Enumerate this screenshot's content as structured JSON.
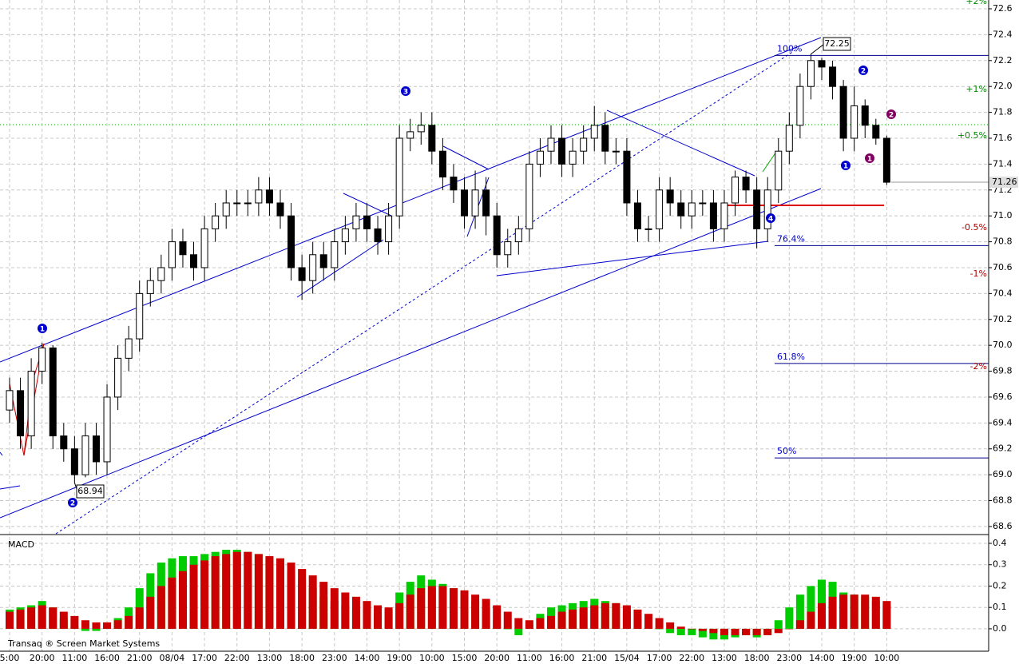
{
  "chart_data": {
    "type": "candlestick",
    "categories": [
      "5:00",
      null,
      null,
      "20:00",
      null,
      null,
      "11:00",
      null,
      null,
      "16:00",
      null,
      null,
      "21:00",
      null,
      null,
      "08/04",
      null,
      null,
      "17:00",
      null,
      null,
      "22:00",
      null,
      null,
      "13:00",
      null,
      null,
      "18:00",
      null,
      null,
      "23:00",
      null,
      null,
      "14:00",
      null,
      null,
      "19:00",
      null,
      null,
      "10:00",
      null,
      null,
      "15:00",
      null,
      null,
      "20:00",
      null,
      null,
      "11:00",
      null,
      null,
      "16:00",
      null,
      null,
      "21:00",
      null,
      null,
      "15/04",
      null,
      null,
      "17:00",
      null,
      null,
      "22:00",
      null,
      null,
      "13:00",
      null,
      null,
      "18:00",
      null,
      null,
      "23:00",
      null,
      null,
      "14:00",
      null,
      null,
      "19:00",
      null,
      null,
      "10:00"
    ],
    "open": [
      69.5,
      69.65,
      69.3,
      69.8,
      69.98,
      69.3,
      69.2,
      69.0,
      69.3,
      69.1,
      69.6,
      69.9,
      70.05,
      70.4,
      70.5,
      70.6,
      70.8,
      70.7,
      70.6,
      70.9,
      71.0,
      71.1,
      71.1,
      71.1,
      71.2,
      71.1,
      71.0,
      70.6,
      70.5,
      70.7,
      70.6,
      70.8,
      70.9,
      71.0,
      70.9,
      70.8,
      71.0,
      71.6,
      71.65,
      71.7,
      71.5,
      71.3,
      71.2,
      71.0,
      71.2,
      71.0,
      70.7,
      70.8,
      70.9,
      71.4,
      71.5,
      71.6,
      71.4,
      71.5,
      71.6,
      71.7,
      71.5,
      71.5,
      71.1,
      70.9,
      70.9,
      71.2,
      71.1,
      71.0,
      71.1,
      71.1,
      70.9,
      71.1,
      71.3,
      71.2,
      70.9,
      71.2,
      71.5,
      71.7,
      72.0,
      72.2,
      72.15,
      72.0,
      71.6,
      71.85,
      71.7,
      71.6
    ],
    "high": [
      69.75,
      69.75,
      69.9,
      70.02,
      70.0,
      69.4,
      69.3,
      69.4,
      69.4,
      69.7,
      70.0,
      70.15,
      70.5,
      70.6,
      70.7,
      70.9,
      70.9,
      70.8,
      71.0,
      71.1,
      71.2,
      71.2,
      71.2,
      71.3,
      71.3,
      71.2,
      71.1,
      70.7,
      70.8,
      70.8,
      70.9,
      71.0,
      71.1,
      71.1,
      71.0,
      71.1,
      71.7,
      71.75,
      71.8,
      71.8,
      71.6,
      71.4,
      71.3,
      71.35,
      71.3,
      71.1,
      70.9,
      71.0,
      71.5,
      71.6,
      71.7,
      71.7,
      71.6,
      71.7,
      71.85,
      71.8,
      71.6,
      71.6,
      71.2,
      71.0,
      71.3,
      71.3,
      71.2,
      71.2,
      71.2,
      71.2,
      71.2,
      71.35,
      71.35,
      71.3,
      71.3,
      71.6,
      71.8,
      72.1,
      72.25,
      72.22,
      72.2,
      72.05,
      72.0,
      71.9,
      71.75,
      71.62
    ],
    "low": [
      69.4,
      69.2,
      69.2,
      69.7,
      69.2,
      69.1,
      68.94,
      68.98,
      69.0,
      69.0,
      69.5,
      69.8,
      69.95,
      70.3,
      70.4,
      70.5,
      70.6,
      70.5,
      70.5,
      70.8,
      70.9,
      71.0,
      71.0,
      71.0,
      71.0,
      70.9,
      70.5,
      70.35,
      70.4,
      70.5,
      70.5,
      70.7,
      70.8,
      70.8,
      70.7,
      70.7,
      70.9,
      71.5,
      71.55,
      71.4,
      71.2,
      71.1,
      70.9,
      70.9,
      70.85,
      70.6,
      70.6,
      70.7,
      70.8,
      71.3,
      71.4,
      71.3,
      71.3,
      71.4,
      71.5,
      71.4,
      71.4,
      71.0,
      70.8,
      70.8,
      70.8,
      71.0,
      70.9,
      70.9,
      71.0,
      70.8,
      70.8,
      71.0,
      71.1,
      70.75,
      70.8,
      71.1,
      71.4,
      71.6,
      71.9,
      72.05,
      71.9,
      71.5,
      71.5,
      71.6,
      71.55,
      71.24
    ],
    "close": [
      69.65,
      69.3,
      69.8,
      69.98,
      69.3,
      69.2,
      69.0,
      69.3,
      69.1,
      69.6,
      69.9,
      70.05,
      70.4,
      70.5,
      70.6,
      70.8,
      70.7,
      70.6,
      70.9,
      71.0,
      71.1,
      71.1,
      71.1,
      71.2,
      71.1,
      71.0,
      70.6,
      70.5,
      70.7,
      70.6,
      70.8,
      70.9,
      71.0,
      70.9,
      70.8,
      71.0,
      71.6,
      71.65,
      71.7,
      71.5,
      71.3,
      71.2,
      71.0,
      71.2,
      71.0,
      70.7,
      70.8,
      70.9,
      71.4,
      71.5,
      71.6,
      71.4,
      71.5,
      71.6,
      71.7,
      71.5,
      71.5,
      71.1,
      70.9,
      70.9,
      71.2,
      71.1,
      71.0,
      71.1,
      71.1,
      70.9,
      71.1,
      71.3,
      71.2,
      70.9,
      71.2,
      71.5,
      71.7,
      72.0,
      72.2,
      72.15,
      72.0,
      71.6,
      71.85,
      71.7,
      71.6,
      71.26
    ],
    "up_color": "#ffffff",
    "down_color": "#000000",
    "ylim": [
      68.544,
      72.668
    ],
    "yticks": [
      72.6,
      72.4,
      72.2,
      {
        "value": 72,
        "label": "72.0"
      },
      71.8,
      71.6,
      71.4,
      71.2,
      {
        "value": 71,
        "label": "71.0"
      },
      70.8,
      70.6,
      70.4,
      70.2,
      {
        "value": 70,
        "label": "70.0"
      },
      69.8,
      69.6,
      69.4,
      69.2,
      {
        "value": 69,
        "label": "69.0"
      },
      68.8,
      68.6
    ],
    "grid": true,
    "fib_levels": [
      {
        "label": "100%",
        "value": 72.24
      },
      {
        "label": "76.4%",
        "value": 70.77
      },
      {
        "label": "61.8%",
        "value": 69.86
      },
      {
        "label": "50%",
        "value": 69.13
      }
    ],
    "percent_labels": [
      "+2%",
      "+1%",
      "+0.5%",
      "-0.5%",
      "-1%",
      "-2%"
    ],
    "wave_labels": [
      "1",
      "2",
      "3",
      "4",
      "1",
      "2",
      "1",
      "2"
    ],
    "indicator": {
      "type": "bar",
      "title": "MACD",
      "ylim": [
        -0.105,
        0.43
      ],
      "yticks": [
        0.4,
        0.3,
        0.2,
        0.1,
        {
          "value": 0,
          "label": "0.0"
        }
      ],
      "series": [
        {
          "color": "#00cc00",
          "values": [
            0.09,
            0.1,
            0.11,
            0.13,
            0.1,
            0.05,
            0.01,
            -0.01,
            -0.01,
            0.01,
            0.05,
            0.1,
            0.19,
            0.26,
            0.31,
            0.33,
            0.34,
            0.34,
            0.35,
            0.36,
            0.37,
            0.37,
            0.36,
            0.35,
            0.33,
            0.32,
            0.27,
            0.23,
            0.19,
            0.15,
            0.13,
            0.11,
            0.09,
            0.08,
            0.07,
            0.09,
            0.17,
            0.22,
            0.25,
            0.23,
            0.21,
            0.19,
            0.16,
            0.13,
            0.1,
            0.04,
            0.0,
            -0.03,
            0.02,
            0.07,
            0.1,
            0.11,
            0.12,
            0.13,
            0.14,
            0.13,
            0.12,
            0.08,
            0.04,
            0.01,
            0.0,
            -0.02,
            -0.03,
            -0.03,
            -0.04,
            -0.05,
            -0.05,
            -0.04,
            -0.03,
            -0.04,
            -0.02,
            0.04,
            0.1,
            0.16,
            0.2,
            0.23,
            0.22,
            0.17,
            0.16,
            0.15,
            0.13,
            0.11
          ]
        },
        {
          "color": "#cc0000",
          "values": [
            0.08,
            0.09,
            0.1,
            0.11,
            0.1,
            0.08,
            0.06,
            0.04,
            0.03,
            0.03,
            0.04,
            0.06,
            0.1,
            0.15,
            0.2,
            0.24,
            0.27,
            0.3,
            0.32,
            0.34,
            0.35,
            0.36,
            0.36,
            0.35,
            0.34,
            0.33,
            0.31,
            0.28,
            0.25,
            0.22,
            0.19,
            0.17,
            0.15,
            0.13,
            0.11,
            0.1,
            0.12,
            0.16,
            0.19,
            0.2,
            0.2,
            0.19,
            0.18,
            0.16,
            0.14,
            0.11,
            0.08,
            0.05,
            0.04,
            0.05,
            0.06,
            0.08,
            0.09,
            0.1,
            0.11,
            0.12,
            0.12,
            0.11,
            0.09,
            0.07,
            0.05,
            0.03,
            0.01,
            0.0,
            -0.01,
            -0.02,
            -0.03,
            -0.03,
            -0.03,
            -0.03,
            -0.03,
            -0.02,
            0.0,
            0.04,
            0.08,
            0.12,
            0.15,
            0.16,
            0.16,
            0.16,
            0.15,
            0.13
          ]
        }
      ]
    },
    "footer": "Transaq ® Screen Market Systems"
  }
}
